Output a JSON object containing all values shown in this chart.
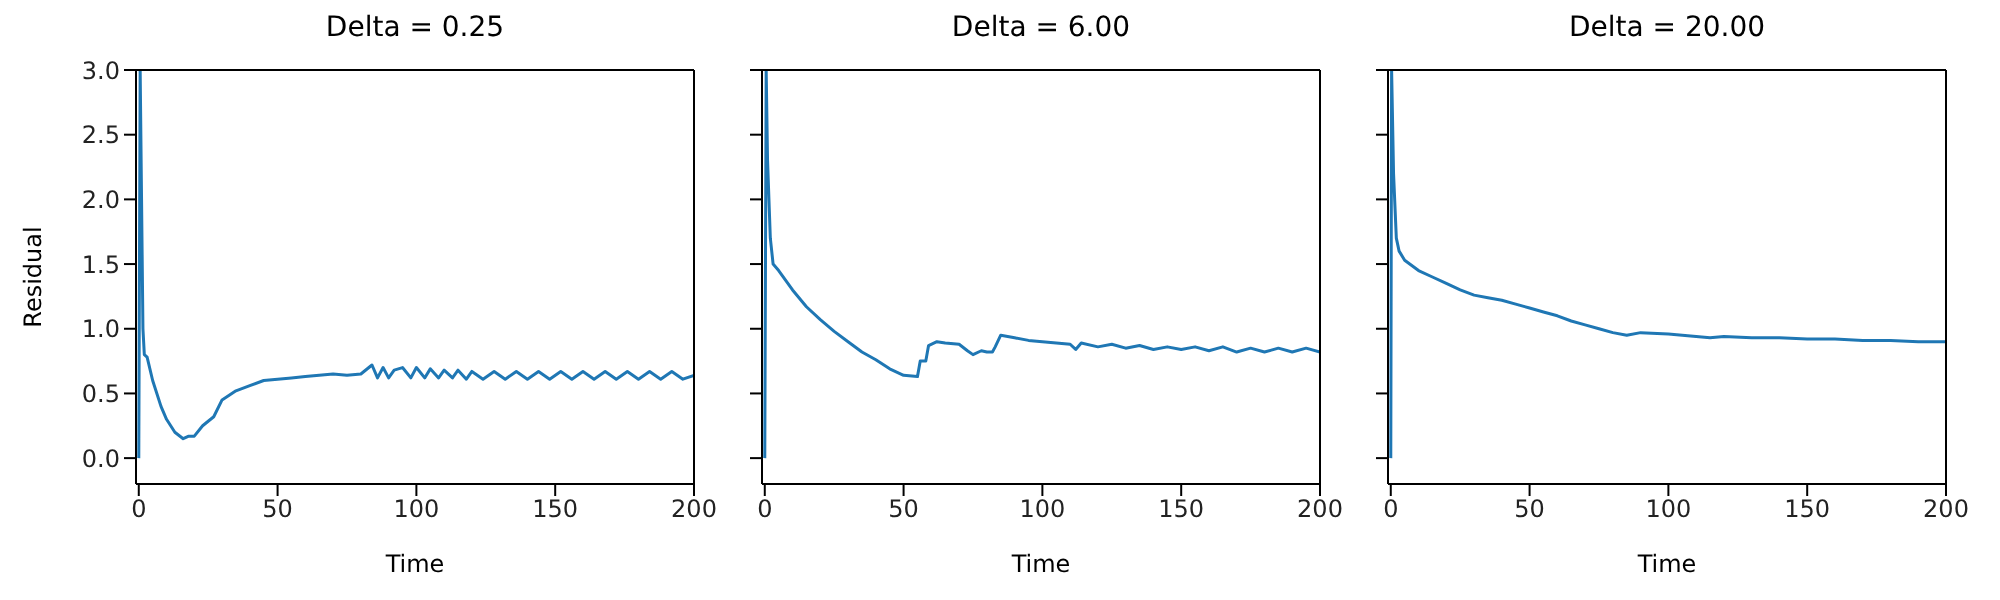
{
  "chart_data": [
    {
      "type": "line",
      "title": "Delta = 0.25",
      "xlabel": "Time",
      "ylabel": "Residual",
      "xlim": [
        -1,
        200
      ],
      "ylim": [
        -0.2,
        3.0
      ],
      "xticks": [
        0,
        50,
        100,
        150,
        200
      ],
      "yticks": [
        {
          "value": 0,
          "label": "0.0"
        },
        {
          "value": 0.5,
          "label": "0.5"
        },
        {
          "value": 1,
          "label": "1.0"
        },
        {
          "value": 1.5,
          "label": "1.5"
        },
        {
          "value": 2,
          "label": "2.0"
        },
        {
          "value": 2.5,
          "label": "2.5"
        },
        {
          "value": 3,
          "label": "3.0"
        }
      ],
      "marker": "none",
      "line_style": "solid",
      "series": [
        {
          "color": "#1f77b4",
          "x": [
            0,
            0.5,
            1,
            1.5,
            2,
            3,
            5,
            8,
            10,
            13,
            16,
            18,
            20,
            23,
            27,
            30,
            35,
            40,
            45,
            50,
            55,
            60,
            65,
            70,
            75,
            80,
            84,
            86,
            88,
            90,
            92,
            95,
            98,
            100,
            103,
            105,
            108,
            110,
            113,
            115,
            118,
            120,
            124,
            128,
            132,
            136,
            140,
            144,
            148,
            152,
            156,
            160,
            164,
            168,
            172,
            176,
            180,
            184,
            188,
            192,
            196,
            200
          ],
          "values": [
            0,
            3.0,
            2.0,
            1.0,
            0.8,
            0.78,
            0.6,
            0.4,
            0.3,
            0.2,
            0.15,
            0.17,
            0.17,
            0.25,
            0.32,
            0.45,
            0.52,
            0.56,
            0.6,
            0.61,
            0.62,
            0.63,
            0.64,
            0.65,
            0.64,
            0.65,
            0.72,
            0.62,
            0.7,
            0.62,
            0.68,
            0.7,
            0.62,
            0.7,
            0.62,
            0.69,
            0.62,
            0.68,
            0.62,
            0.68,
            0.61,
            0.67,
            0.61,
            0.67,
            0.61,
            0.67,
            0.61,
            0.67,
            0.61,
            0.67,
            0.61,
            0.67,
            0.61,
            0.67,
            0.61,
            0.67,
            0.61,
            0.67,
            0.61,
            0.67,
            0.61,
            0.64
          ]
        }
      ]
    },
    {
      "type": "line",
      "title": "Delta = 6.00",
      "xlabel": "Time",
      "xlim": [
        -1,
        200
      ],
      "ylim": [
        -0.2,
        3.0
      ],
      "xticks": [
        0,
        50,
        100,
        150,
        200
      ],
      "yticks": [
        {
          "value": 0,
          "label": null
        },
        {
          "value": 0.5,
          "label": null
        },
        {
          "value": 1,
          "label": null
        },
        {
          "value": 1.5,
          "label": null
        },
        {
          "value": 2,
          "label": null
        },
        {
          "value": 2.5,
          "label": null
        },
        {
          "value": 3,
          "label": null
        }
      ],
      "tick_labels": "x",
      "marker": "none",
      "line_style": "solid",
      "series": [
        {
          "color": "#1f77b4",
          "x": [
            0,
            0.5,
            1,
            2,
            3,
            5,
            10,
            15,
            20,
            25,
            30,
            35,
            40,
            45,
            50,
            55,
            56,
            58,
            59,
            62,
            65,
            70,
            73,
            75,
            78,
            80,
            82,
            83,
            85,
            90,
            95,
            100,
            105,
            110,
            112,
            114,
            120,
            125,
            130,
            135,
            140,
            145,
            150,
            155,
            160,
            165,
            170,
            175,
            180,
            185,
            190,
            195,
            200
          ],
          "values": [
            0,
            3.0,
            2.3,
            1.7,
            1.5,
            1.45,
            1.3,
            1.17,
            1.07,
            0.98,
            0.9,
            0.82,
            0.76,
            0.69,
            0.64,
            0.63,
            0.75,
            0.75,
            0.87,
            0.9,
            0.89,
            0.88,
            0.83,
            0.8,
            0.83,
            0.82,
            0.82,
            0.86,
            0.95,
            0.93,
            0.91,
            0.9,
            0.89,
            0.88,
            0.84,
            0.89,
            0.86,
            0.88,
            0.85,
            0.87,
            0.84,
            0.86,
            0.84,
            0.86,
            0.83,
            0.86,
            0.82,
            0.85,
            0.82,
            0.85,
            0.82,
            0.85,
            0.82
          ]
        }
      ]
    },
    {
      "type": "line",
      "title": "Delta = 20.00",
      "xlabel": "Time",
      "xlim": [
        -1,
        200
      ],
      "ylim": [
        -0.2,
        3.0
      ],
      "xticks": [
        0,
        50,
        100,
        150,
        200
      ],
      "yticks": [
        {
          "value": 0,
          "label": null
        },
        {
          "value": 0.5,
          "label": null
        },
        {
          "value": 1,
          "label": null
        },
        {
          "value": 1.5,
          "label": null
        },
        {
          "value": 2,
          "label": null
        },
        {
          "value": 2.5,
          "label": null
        },
        {
          "value": 3,
          "label": null
        }
      ],
      "tick_labels": "x",
      "marker": "none",
      "line_style": "solid",
      "series": [
        {
          "color": "#1f77b4",
          "x": [
            0,
            0.3,
            1,
            2,
            3,
            5,
            10,
            15,
            20,
            25,
            30,
            35,
            40,
            45,
            50,
            55,
            60,
            65,
            70,
            75,
            80,
            85,
            90,
            100,
            110,
            115,
            120,
            130,
            140,
            150,
            160,
            170,
            180,
            190,
            200
          ],
          "values": [
            0,
            3.0,
            2.2,
            1.7,
            1.6,
            1.53,
            1.45,
            1.4,
            1.35,
            1.3,
            1.26,
            1.24,
            1.22,
            1.19,
            1.16,
            1.13,
            1.1,
            1.06,
            1.03,
            1.0,
            0.97,
            0.95,
            0.97,
            0.96,
            0.94,
            0.93,
            0.94,
            0.93,
            0.93,
            0.92,
            0.92,
            0.91,
            0.91,
            0.9,
            0.9
          ]
        }
      ]
    }
  ]
}
